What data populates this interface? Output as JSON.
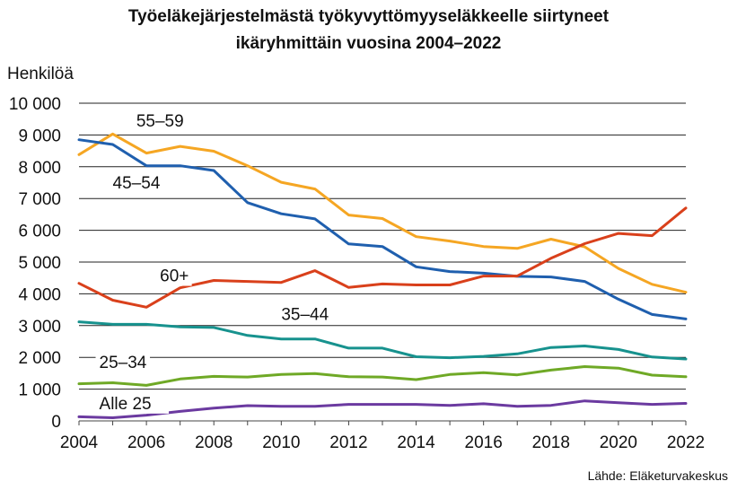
{
  "chart_data": {
    "type": "line",
    "title_lines": [
      "Työeläkejärjestelmästä työkyvyttömyyseläkkeelle siirtyneet",
      "ikäryhmittäin vuosina 2004–2022"
    ],
    "ylabel": "Henkilöä",
    "xlabel": "",
    "source": "Lähde: Eläketurvakeskus",
    "x": [
      2004,
      2005,
      2006,
      2007,
      2008,
      2009,
      2010,
      2011,
      2012,
      2013,
      2014,
      2015,
      2016,
      2017,
      2018,
      2019,
      2020,
      2021,
      2022
    ],
    "x_ticks": [
      2004,
      2006,
      2008,
      2010,
      2012,
      2014,
      2016,
      2018,
      2020,
      2022
    ],
    "x_tick_labels": [
      "2004",
      "2006",
      "2008",
      "2010",
      "2012",
      "2014",
      "2016",
      "2018",
      "2020",
      "2022"
    ],
    "xlim": [
      2004,
      2022
    ],
    "ylim": [
      0,
      10000
    ],
    "y_ticks": [
      0,
      1000,
      2000,
      3000,
      4000,
      5000,
      6000,
      7000,
      8000,
      9000,
      10000
    ],
    "y_tick_labels": [
      "0",
      "1 000",
      "2 000",
      "3 000",
      "4 000",
      "5 000",
      "6 000",
      "7 000",
      "8 000",
      "9 000",
      "10 000"
    ],
    "grid": "horizontal",
    "series": [
      {
        "name": "55–59",
        "color": "#F5A623",
        "values": [
          8380,
          9030,
          8430,
          8640,
          8490,
          8030,
          7510,
          7300,
          6480,
          6370,
          5800,
          5660,
          5490,
          5430,
          5720,
          5480,
          4800,
          4300,
          4050
        ]
      },
      {
        "name": "45–54",
        "color": "#1F5FAE",
        "values": [
          8850,
          8700,
          8030,
          8030,
          7880,
          6870,
          6520,
          6360,
          5570,
          5490,
          4850,
          4700,
          4650,
          4550,
          4530,
          4390,
          3830,
          3350,
          3210
        ]
      },
      {
        "name": "60+",
        "color": "#D9401B",
        "values": [
          4330,
          3800,
          3580,
          4190,
          4420,
          4390,
          4360,
          4730,
          4200,
          4310,
          4280,
          4280,
          4560,
          4560,
          5120,
          5580,
          5900,
          5830,
          6700
        ]
      },
      {
        "name": "35–44",
        "color": "#17928E",
        "values": [
          3120,
          3040,
          3040,
          2960,
          2940,
          2690,
          2580,
          2580,
          2290,
          2290,
          2020,
          1990,
          2030,
          2110,
          2310,
          2360,
          2250,
          2010,
          1950
        ]
      },
      {
        "name": "25–34",
        "color": "#6FA926",
        "values": [
          1170,
          1200,
          1120,
          1320,
          1400,
          1380,
          1460,
          1490,
          1390,
          1380,
          1300,
          1460,
          1520,
          1450,
          1600,
          1710,
          1660,
          1440,
          1390
        ]
      },
      {
        "name": "Alle 25",
        "color": "#6B3AA0",
        "values": [
          130,
          100,
          180,
          300,
          400,
          480,
          460,
          460,
          520,
          520,
          520,
          490,
          540,
          460,
          490,
          630,
          570,
          520,
          550
        ]
      }
    ],
    "series_labels": [
      {
        "text": "55–59",
        "x": 2005.7,
        "y": 9300
      },
      {
        "text": "45–54",
        "x": 2005.0,
        "y": 7350
      },
      {
        "text": "60+",
        "x": 2006.4,
        "y": 4420
      },
      {
        "text": "35–44",
        "x": 2010.0,
        "y": 3200
      },
      {
        "text": "25–34",
        "x": 2004.6,
        "y": 1700
      },
      {
        "text": "Alle 25",
        "x": 2004.6,
        "y": 400
      }
    ]
  }
}
